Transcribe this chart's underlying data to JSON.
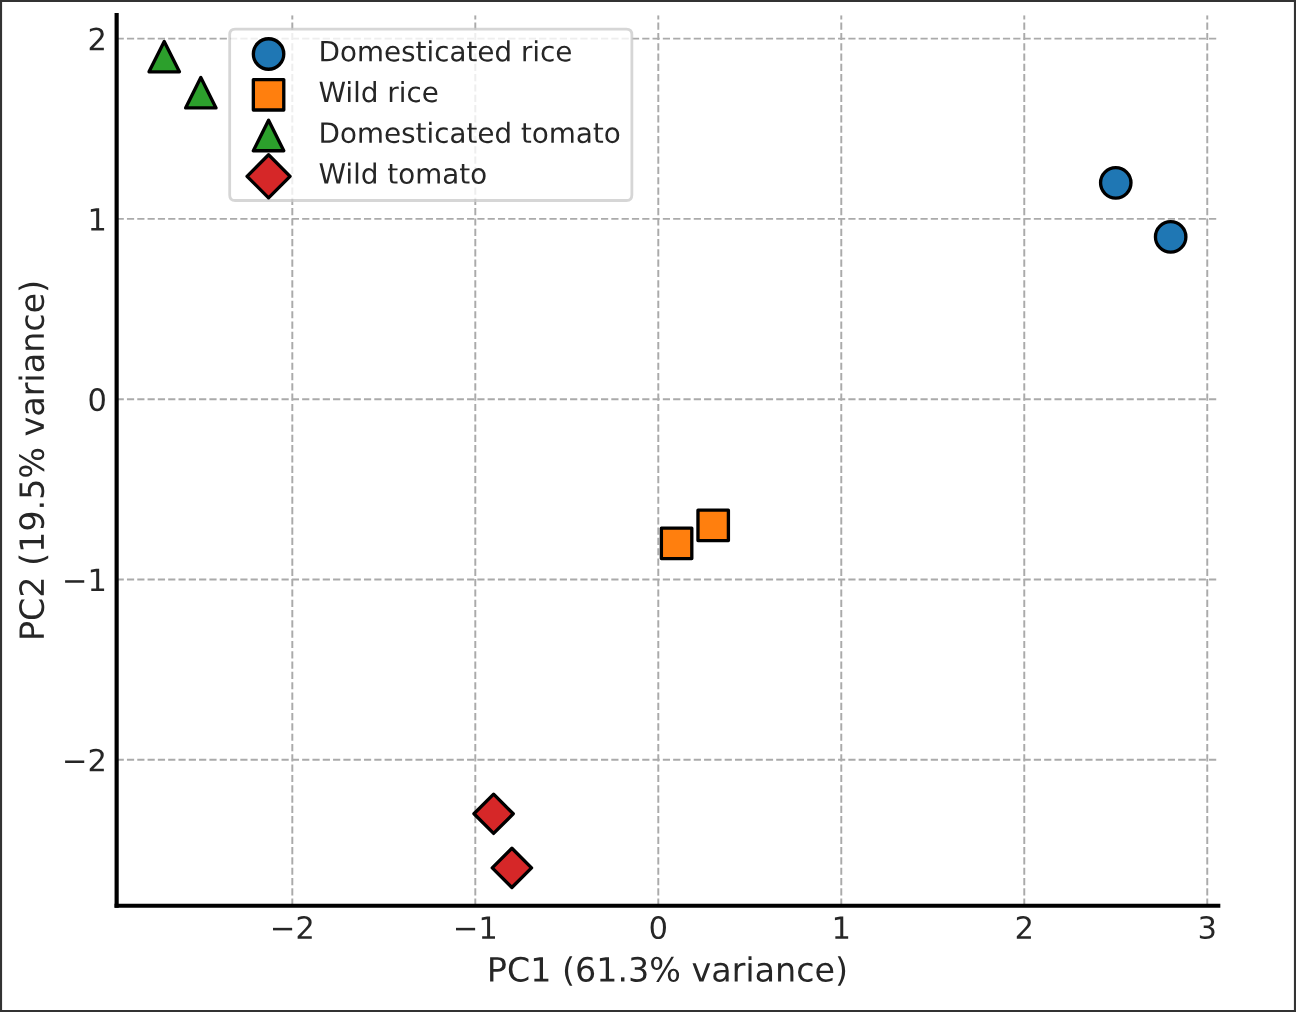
{
  "chart_data": {
    "type": "scatter",
    "xlabel": "PC1 (61.3% variance)",
    "ylabel": "PC2 (19.5% variance)",
    "series": [
      {
        "name": "Domesticated rice",
        "color": "#1f77b4",
        "marker": "circle",
        "x": [
          2.5,
          2.8
        ],
        "values": [
          1.2,
          0.9
        ]
      },
      {
        "name": "Wild rice",
        "color": "#ff7f0e",
        "marker": "square",
        "x": [
          0.1,
          0.3
        ],
        "values": [
          -0.8,
          -0.7
        ]
      },
      {
        "name": "Domesticated tomato",
        "color": "#2ca02c",
        "marker": "triangle",
        "x": [
          -2.7,
          -2.5
        ],
        "values": [
          1.9,
          1.7
        ]
      },
      {
        "name": "Wild tomato",
        "color": "#d62728",
        "marker": "diamond",
        "x": [
          -0.9,
          -0.8
        ],
        "values": [
          -2.3,
          -2.6
        ]
      }
    ],
    "xlim": [
      -2.96,
      3.06
    ],
    "ylim": [
      -2.81,
      2.13
    ],
    "xticks": [
      {
        "value": -2,
        "label": "−2"
      },
      {
        "value": -1,
        "label": "−1"
      },
      0,
      1,
      2,
      3
    ],
    "yticks": [
      {
        "value": -2,
        "label": "−2"
      },
      {
        "value": -1,
        "label": "−1"
      },
      0,
      1,
      2
    ],
    "grid": true,
    "legend": "top left"
  }
}
